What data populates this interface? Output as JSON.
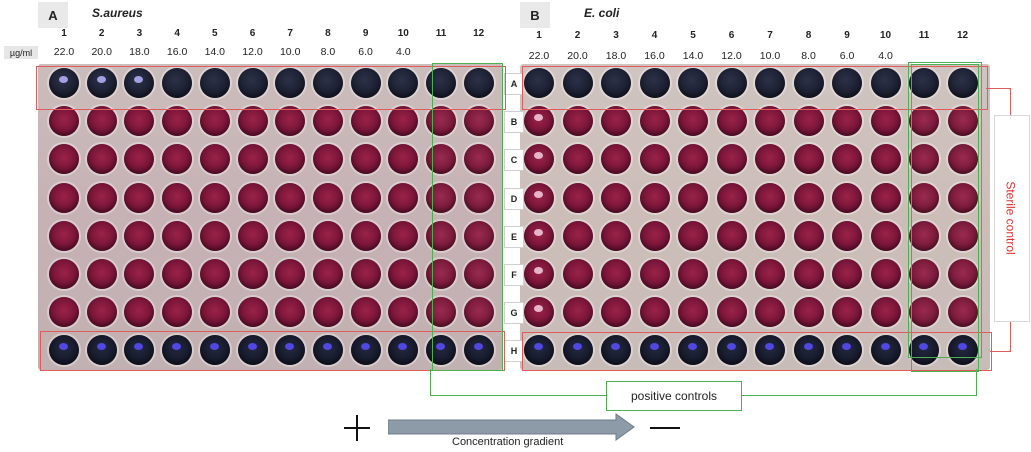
{
  "panels": [
    {
      "letter": "A",
      "organism": "S.aureus",
      "columns": [
        "1",
        "2",
        "3",
        "4",
        "5",
        "6",
        "7",
        "8",
        "9",
        "10",
        "11",
        "12"
      ],
      "concentrations": [
        "22.0",
        "20.0",
        "18.0",
        "16.0",
        "14.0",
        "12.0",
        "10.0",
        "8.0",
        "6.0",
        "4.0"
      ]
    },
    {
      "letter": "B",
      "organism": "E. coli",
      "columns": [
        "1",
        "2",
        "3",
        "4",
        "5",
        "6",
        "7",
        "8",
        "9",
        "10",
        "11",
        "12"
      ],
      "concentrations": [
        "22.0",
        "20.0",
        "18.0",
        "16.0",
        "14.0",
        "12.0",
        "10.0",
        "8.0",
        "6.0",
        "4.0"
      ]
    }
  ],
  "unit_label": "µg/ml",
  "row_labels": [
    "A",
    "B",
    "C",
    "D",
    "E",
    "F",
    "G",
    "H"
  ],
  "sterile_control_label": "Sterile control",
  "positive_controls_label": "positive controls",
  "gradient_label": "Concentration gradient",
  "colors": {
    "resazurin_blue": "#1c2133",
    "resorufin_pink": "#8a1b3e",
    "red_outline": "#e05c5c",
    "green_outline": "#4caf50",
    "gradient_arrow": "#8d9aa8"
  }
}
